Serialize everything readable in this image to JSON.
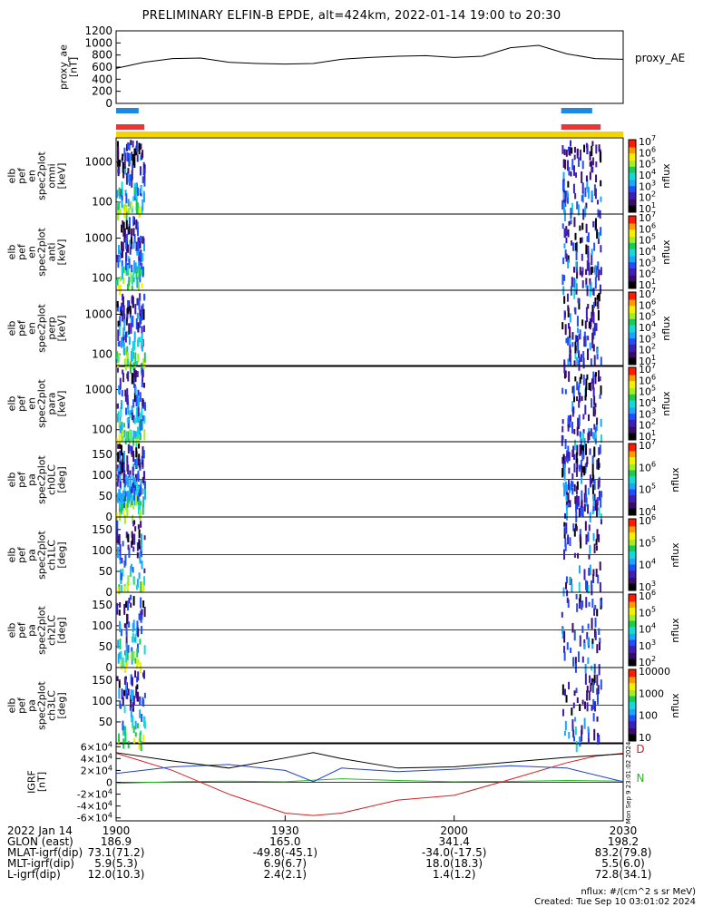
{
  "title": "PRELIMINARY ELFIN-B EPDE, alt=424km, 2022-01-14 19:00 to 20:30",
  "colors": {
    "proxy_line": "#000000",
    "status_blue": "#1e88e5",
    "status_red": "#e53935",
    "status_yellow": "#f2d400",
    "field_black": "#000000",
    "field_blue": "#1f3fd9",
    "field_green": "#22bb22",
    "field_red": "#d12020"
  },
  "panels": {
    "proxy": {
      "ylabel": "proxy_ae\n[nT]",
      "yticks": [
        "0",
        "200",
        "400",
        "600",
        "800",
        "1000",
        "1200"
      ],
      "legend": "proxy_AE"
    },
    "spectra": [
      {
        "ylabel": "elb\npef\nen\nspec2plot\nomni\n[keV]",
        "yticks": [
          "100",
          "1000"
        ],
        "cbar_ticks": [
          "10^7",
          "10^6",
          "10^5",
          "10^4",
          "10^3",
          "10^2",
          "10^1"
        ],
        "cbar_label": "nflux"
      },
      {
        "ylabel": "elb\npef\nen\nspec2plot\nanti\n[keV]",
        "yticks": [
          "100",
          "1000"
        ],
        "cbar_ticks": [
          "10^7",
          "10^6",
          "10^5",
          "10^4",
          "10^3",
          "10^2",
          "10^1"
        ],
        "cbar_label": "nflux"
      },
      {
        "ylabel": "elb\npef\nen\nspec2plot\nperp\n[keV]",
        "yticks": [
          "100",
          "1000"
        ],
        "cbar_ticks": [
          "10^7",
          "10^6",
          "10^5",
          "10^4",
          "10^3",
          "10^2",
          "10^1"
        ],
        "cbar_label": "nflux"
      },
      {
        "ylabel": "elb\npef\nen\nspec2plot\npara\n[keV]",
        "yticks": [
          "100",
          "1000"
        ],
        "cbar_ticks": [
          "10^7",
          "10^6",
          "10^5",
          "10^4",
          "10^3",
          "10^2",
          "10^1"
        ],
        "cbar_label": "nflux"
      }
    ],
    "pitch": [
      {
        "ylabel": "elb\npef\npa\nspec2plot\nch0LC\n[deg]",
        "yticks": [
          "0",
          "50",
          "100",
          "150"
        ],
        "cbar_ticks": [
          "10^7",
          "10^6",
          "10^5",
          "10^4"
        ],
        "cbar_label": "nflux"
      },
      {
        "ylabel": "elb\npef\npa\nspec2plot\nch1LC\n[deg]",
        "yticks": [
          "0",
          "50",
          "100",
          "150"
        ],
        "cbar_ticks": [
          "10^6",
          "10^5",
          "10^4",
          "10^3"
        ],
        "cbar_label": "nflux"
      },
      {
        "ylabel": "elb\npef\npa\nspec2plot\nch2LC\n[deg]",
        "yticks": [
          "0",
          "50",
          "100",
          "150"
        ],
        "cbar_ticks": [
          "10^6",
          "10^5",
          "10^4",
          "10^3",
          "10^2"
        ],
        "cbar_label": "nflux"
      },
      {
        "ylabel": "elb\npef\npa\nspec2plot\nch3LC\n[deg]",
        "yticks": [
          "50",
          "100",
          "150"
        ],
        "cbar_ticks": [
          "10000",
          "1000",
          "100",
          "10"
        ],
        "cbar_label": "nflux"
      }
    ],
    "igrf": {
      "ylabel": "IGRF\n[nT]",
      "yticks": [
        "-6×10^4",
        "-4×10^4",
        "-2×10^4",
        "0",
        "2×10^4",
        "4×10^4",
        "6×10^4"
      ],
      "side_labels": [
        "D",
        "N"
      ],
      "stamp": "Mon Sep 9 23:01:02 2024"
    }
  },
  "time_axis": {
    "rows": [
      {
        "label": "2022 Jan 14",
        "values": [
          "1900",
          "1930",
          "2000",
          "2030"
        ]
      },
      {
        "label": "GLON (east)",
        "values": [
          "186.9",
          "165.0",
          "341.4",
          "198.2"
        ]
      },
      {
        "label": "MLAT-igrf(dip)",
        "values": [
          "73.1(71.2)",
          "-49.8(-45.1)",
          "-34.0(-17.5)",
          "83.2(79.8)"
        ]
      },
      {
        "label": "MLT-igrf(dip)",
        "values": [
          "5.9(5.3)",
          "6.9(6.7)",
          "18.0(18.3)",
          "5.5(6.0)"
        ]
      },
      {
        "label": "L-igrf(dip)",
        "values": [
          "12.0(10.3)",
          "2.4(2.1)",
          "1.4(1.2)",
          "72.8(34.1)"
        ]
      }
    ]
  },
  "footer": {
    "units": "nflux: #/(cm^2 s sr MeV)",
    "created": "Created: Tue Sep 10 03:01:02 2024"
  },
  "chart_data": {
    "type": "line",
    "x_units": "minutes after 19:00 UT",
    "xlim": [
      0,
      90
    ],
    "series": [
      {
        "name": "proxy_AE",
        "ylim": [
          0,
          1200
        ],
        "x": [
          0,
          5,
          10,
          15,
          20,
          25,
          30,
          35,
          40,
          45,
          50,
          55,
          60,
          65,
          70,
          75,
          80,
          85,
          90
        ],
        "y": [
          580,
          680,
          740,
          750,
          680,
          660,
          650,
          660,
          730,
          760,
          780,
          790,
          760,
          780,
          920,
          960,
          820,
          740,
          730
        ]
      },
      {
        "name": "D",
        "ylim": [
          -60000,
          60000
        ],
        "x": [
          0,
          10,
          20,
          30,
          35,
          40,
          50,
          60,
          70,
          80,
          85,
          90
        ],
        "y": [
          49000,
          20000,
          -20000,
          -52000,
          -56000,
          -52000,
          -30000,
          -22000,
          5000,
          33000,
          44000,
          49000
        ]
      },
      {
        "name": "N",
        "ylim": [
          -60000,
          60000
        ],
        "x": [
          0,
          10,
          20,
          30,
          40,
          50,
          60,
          70,
          80,
          90
        ],
        "y": [
          -2000,
          1000,
          2000,
          1000,
          6000,
          3000,
          1000,
          1500,
          3000,
          2000
        ]
      },
      {
        "name": "",
        "ylim": [
          -60000,
          60000
        ],
        "x": [
          0,
          10,
          20,
          30,
          35,
          40,
          50,
          60,
          70,
          80,
          90
        ],
        "y": [
          15000,
          26000,
          30000,
          20000,
          1000,
          24000,
          18000,
          22000,
          28000,
          24000,
          1000
        ]
      },
      {
        "name": "",
        "ylim": [
          -60000,
          60000
        ],
        "x": [
          0,
          10,
          20,
          30,
          35,
          40,
          50,
          60,
          70,
          80,
          90
        ],
        "y": [
          50000,
          36000,
          24000,
          41000,
          50000,
          40000,
          24000,
          26000,
          34000,
          42000,
          48000
        ]
      }
    ],
    "spectrogram_intervals_min": [
      [
        0,
        5
      ],
      [
        79,
        86
      ]
    ],
    "science_zone_status": [
      {
        "row": "blue",
        "intervals": [
          [
            0,
            4
          ],
          [
            79,
            84.5
          ]
        ]
      },
      {
        "row": "red",
        "intervals": [
          [
            0,
            5
          ],
          [
            79,
            86
          ]
        ]
      },
      {
        "row": "yellow",
        "intervals": [
          [
            0,
            90
          ]
        ]
      }
    ],
    "title": "PRELIMINARY ELFIN-B EPDE, alt=424km, 2022-01-14 19:00 to 20:30"
  }
}
